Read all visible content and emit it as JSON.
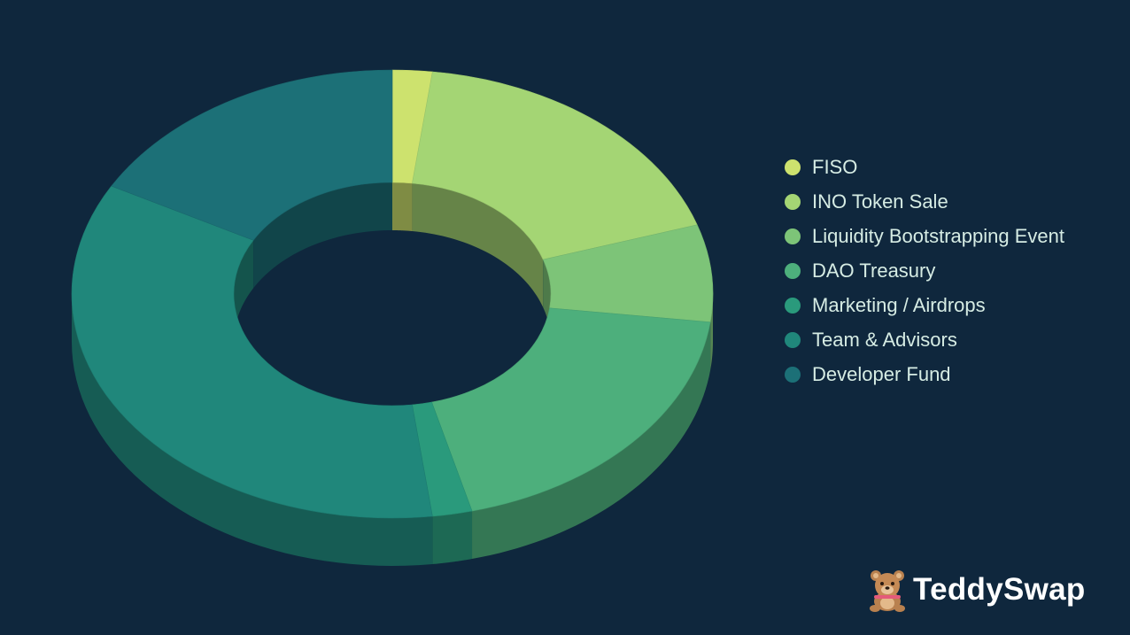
{
  "chart_data": {
    "type": "pie",
    "style": "3d-donut",
    "legend_position": "right",
    "categories": [
      "FISO",
      "INO Token Sale",
      "Liquidity Bootstrapping Event",
      "DAO Treasury",
      "Marketing / Airdrops",
      "Team & Advisors",
      "Developer Fund"
    ],
    "values": [
      2,
      18,
      7,
      19,
      2,
      35,
      17
    ],
    "colors": [
      "#cde26e",
      "#a4d574",
      "#7dc478",
      "#4daf7c",
      "#2a9a7c",
      "#20877b",
      "#1c7077"
    ]
  },
  "brand": {
    "name": "TeddySwap",
    "logo_icon": "teddy-bear-icon"
  }
}
